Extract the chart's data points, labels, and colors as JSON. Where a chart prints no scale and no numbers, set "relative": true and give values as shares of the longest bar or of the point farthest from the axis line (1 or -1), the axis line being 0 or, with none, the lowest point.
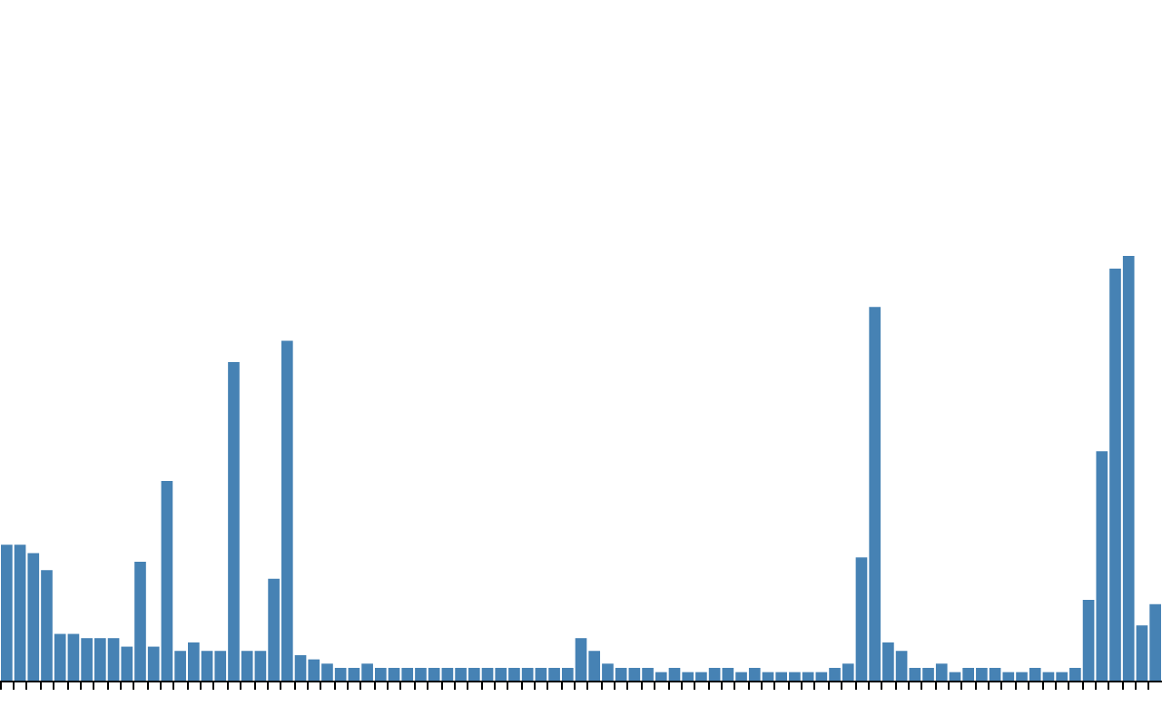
{
  "chart_data": {
    "type": "bar",
    "relative": true,
    "color": "#4682b4",
    "categories": [
      null,
      null,
      null,
      null,
      null,
      null,
      null,
      null,
      null,
      null,
      null,
      null,
      null,
      null,
      null,
      null,
      null,
      null,
      null,
      null,
      null,
      null,
      null,
      null,
      null,
      null,
      null,
      null,
      null,
      null,
      null,
      null,
      null,
      null,
      null,
      null,
      null,
      null,
      null,
      null,
      null,
      null,
      null,
      null,
      null,
      null,
      null,
      null,
      null,
      null,
      null,
      null,
      null,
      null,
      null,
      null,
      null,
      null,
      null,
      null,
      null,
      null,
      null,
      null,
      null,
      null,
      null,
      null,
      null,
      null,
      null,
      null,
      null,
      null,
      null,
      null,
      null,
      null,
      null,
      null,
      null,
      null,
      null,
      null,
      null,
      null,
      null
    ],
    "values": [
      0.32,
      0.32,
      0.3,
      0.26,
      0.11,
      0.11,
      0.1,
      0.1,
      0.1,
      0.08,
      0.28,
      0.08,
      0.47,
      0.07,
      0.09,
      0.07,
      0.07,
      0.75,
      0.07,
      0.07,
      0.24,
      0.8,
      0.06,
      0.05,
      0.04,
      0.03,
      0.03,
      0.04,
      0.03,
      0.03,
      0.03,
      0.03,
      0.03,
      0.03,
      0.03,
      0.03,
      0.03,
      0.03,
      0.03,
      0.03,
      0.03,
      0.03,
      0.03,
      0.1,
      0.07,
      0.04,
      0.03,
      0.03,
      0.03,
      0.02,
      0.03,
      0.02,
      0.02,
      0.03,
      0.03,
      0.02,
      0.03,
      0.02,
      0.02,
      0.02,
      0.02,
      0.02,
      0.03,
      0.04,
      0.29,
      0.88,
      0.09,
      0.07,
      0.03,
      0.03,
      0.04,
      0.02,
      0.03,
      0.03,
      0.03,
      0.02,
      0.02,
      0.03,
      0.02,
      0.02,
      0.03,
      0.19,
      0.54,
      0.97,
      1,
      0.13,
      0.18
    ]
  }
}
